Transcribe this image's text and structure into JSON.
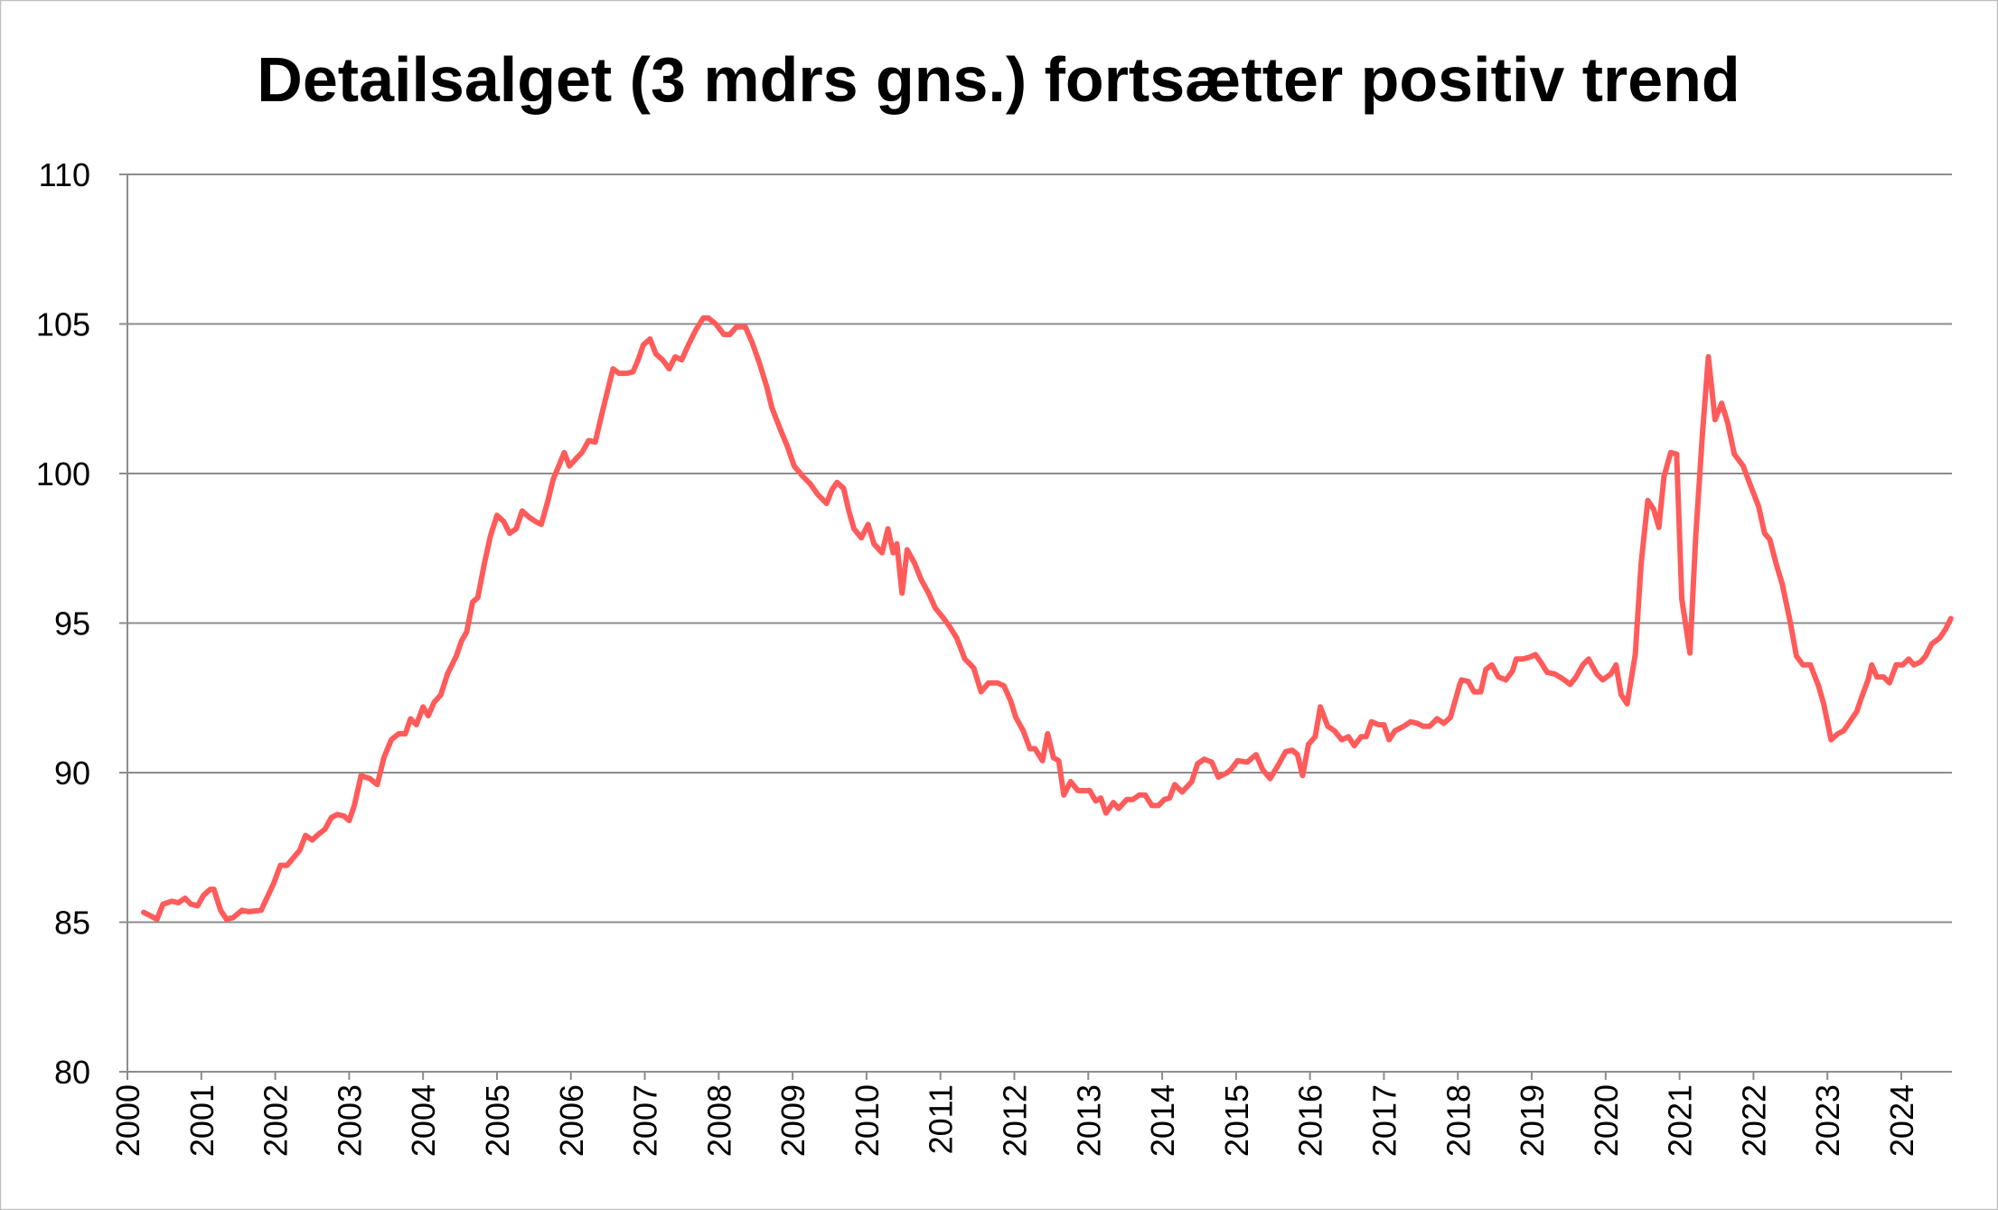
{
  "chart_data": {
    "type": "line",
    "title": "Detailsalget (3 mdrs gns.) fortsætter positiv trend",
    "xlabel": "",
    "ylabel": "",
    "ylim": [
      80,
      110
    ],
    "yticks": [
      80,
      85,
      90,
      95,
      100,
      105,
      110
    ],
    "xlim": [
      2000,
      2024.7
    ],
    "xticks": [
      "2000",
      "2001",
      "2002",
      "2003",
      "2004",
      "2005",
      "2006",
      "2007",
      "2008",
      "2009",
      "2010",
      "2011",
      "2012",
      "2013",
      "2014",
      "2015",
      "2016",
      "2017",
      "2018",
      "2019",
      "2020",
      "2021",
      "2022",
      "2023",
      "2024"
    ],
    "grid": "horizontal",
    "legend": "none",
    "line_color": "#FF5B5B",
    "series": [
      {
        "x": [
          2000.22,
          2000.4,
          2000.48,
          2000.6,
          2000.69,
          2000.78,
          2000.86,
          2000.95,
          2001.03,
          2001.12,
          2001.17,
          2001.26,
          2001.34,
          2001.43,
          2001.55,
          2001.64,
          2001.81,
          2001.98,
          2002.07,
          2002.16,
          2002.33,
          2002.41,
          2002.5,
          2002.59,
          2002.67,
          2002.76,
          2002.84,
          2002.93,
          2003.0,
          2003.07,
          2003.16,
          2003.28,
          2003.38,
          2003.47,
          2003.57,
          2003.67,
          2003.76,
          2003.83,
          2003.91,
          2004.0,
          2004.07,
          2004.15,
          2004.24,
          2004.33,
          2004.45,
          2004.52,
          2004.59,
          2004.67,
          2004.74,
          2004.83,
          2004.91,
          2005.0,
          2005.09,
          2005.17,
          2005.26,
          2005.34,
          2005.43,
          2005.52,
          2005.6,
          2005.69,
          2005.76,
          2005.86,
          2005.91,
          2005.98,
          2006.09,
          2006.15,
          2006.24,
          2006.33,
          2006.41,
          2006.5,
          2006.57,
          2006.65,
          2006.76,
          2006.84,
          2006.91,
          2006.98,
          2007.07,
          2007.15,
          2007.24,
          2007.33,
          2007.41,
          2007.5,
          2007.59,
          2007.69,
          2007.79,
          2007.86,
          2007.96,
          2008.07,
          2008.15,
          2008.24,
          2008.36,
          2008.45,
          2008.55,
          2008.65,
          2008.72,
          2008.83,
          2008.93,
          2009.02,
          2009.14,
          2009.24,
          2009.34,
          2009.46,
          2009.53,
          2009.6,
          2009.69,
          2009.76,
          2009.83,
          2009.93,
          2010.02,
          2010.1,
          2010.21,
          2010.29,
          2010.36,
          2010.41,
          2010.48,
          2010.55,
          2010.65,
          2010.74,
          2010.84,
          2010.93,
          2011.03,
          2011.12,
          2011.22,
          2011.33,
          2011.45,
          2011.55,
          2011.65,
          2011.77,
          2011.86,
          2011.95,
          2012.02,
          2012.12,
          2012.21,
          2012.28,
          2012.38,
          2012.45,
          2012.53,
          2012.6,
          2012.67,
          2012.76,
          2012.86,
          2013.02,
          2013.1,
          2013.17,
          2013.24,
          2013.34,
          2013.41,
          2013.52,
          2013.6,
          2013.69,
          2013.77,
          2013.86,
          2013.95,
          2014.03,
          2014.1,
          2014.17,
          2014.27,
          2014.4,
          2014.48,
          2014.57,
          2014.67,
          2014.76,
          2014.88,
          2014.93,
          2015.02,
          2015.15,
          2015.27,
          2015.36,
          2015.46,
          2015.57,
          2015.67,
          2015.76,
          2015.83,
          2015.9,
          2015.98,
          2016.07,
          2016.14,
          2016.24,
          2016.33,
          2016.43,
          2016.52,
          2016.6,
          2016.69,
          2016.76,
          2016.83,
          2016.93,
          2017.0,
          2017.07,
          2017.15,
          2017.27,
          2017.36,
          2017.45,
          2017.53,
          2017.62,
          2017.72,
          2017.81,
          2017.9,
          2018.02,
          2018.05,
          2018.14,
          2018.22,
          2018.31,
          2018.38,
          2018.46,
          2018.55,
          2018.65,
          2018.74,
          2018.79,
          2018.88,
          2018.96,
          2019.05,
          2019.12,
          2019.21,
          2019.31,
          2019.41,
          2019.52,
          2019.6,
          2019.69,
          2019.77,
          2019.88,
          2019.96,
          2020.07,
          2020.14,
          2020.21,
          2020.29,
          2020.4,
          2020.48,
          2020.57,
          2020.65,
          2020.72,
          2020.79,
          2020.88,
          2020.96,
          2021.03,
          2021.14,
          2021.22,
          2021.31,
          2021.39,
          2021.48,
          2021.57,
          2021.65,
          2021.74,
          2021.86,
          2021.96,
          2022.07,
          2022.15,
          2022.22,
          2022.31,
          2022.39,
          2022.5,
          2022.58,
          2022.67,
          2022.77,
          2022.88,
          2022.95,
          2023.05,
          2023.14,
          2023.22,
          2023.29,
          2023.4,
          2023.46,
          2023.55,
          2023.6,
          2023.67,
          2023.76,
          2023.84,
          2023.93,
          2024.02,
          2024.1,
          2024.17,
          2024.26,
          2024.33,
          2024.41,
          2024.52,
          2024.6,
          2024.67
        ],
        "y": [
          85.33,
          85.1,
          85.6,
          85.7,
          85.65,
          85.8,
          85.6,
          85.55,
          85.9,
          86.1,
          86.1,
          85.4,
          85.1,
          85.15,
          85.4,
          85.35,
          85.4,
          86.3,
          86.9,
          86.9,
          87.4,
          87.9,
          87.75,
          87.95,
          88.1,
          88.5,
          88.6,
          88.55,
          88.4,
          88.9,
          89.9,
          89.8,
          89.6,
          90.5,
          91.1,
          91.3,
          91.3,
          91.8,
          91.6,
          92.2,
          91.9,
          92.35,
          92.6,
          93.3,
          93.9,
          94.4,
          94.7,
          95.7,
          95.85,
          97.0,
          97.9,
          98.6,
          98.4,
          98.0,
          98.15,
          98.75,
          98.55,
          98.4,
          98.3,
          99.1,
          99.8,
          100.4,
          100.7,
          100.25,
          100.55,
          100.7,
          101.1,
          101.05,
          101.9,
          102.8,
          103.5,
          103.35,
          103.35,
          103.4,
          103.8,
          104.3,
          104.5,
          104.0,
          103.8,
          103.5,
          103.9,
          103.8,
          104.3,
          104.8,
          105.2,
          105.2,
          105.0,
          104.65,
          104.65,
          104.9,
          104.9,
          104.4,
          103.7,
          102.9,
          102.2,
          101.5,
          100.9,
          100.25,
          99.9,
          99.65,
          99.3,
          99.0,
          99.45,
          99.7,
          99.5,
          98.75,
          98.15,
          97.85,
          98.3,
          97.65,
          97.35,
          98.15,
          97.35,
          97.65,
          96.0,
          97.45,
          97.0,
          96.45,
          96.0,
          95.5,
          95.2,
          94.9,
          94.5,
          93.8,
          93.5,
          92.7,
          93.0,
          93.0,
          92.9,
          92.4,
          91.85,
          91.4,
          90.8,
          90.8,
          90.4,
          91.3,
          90.5,
          90.4,
          89.25,
          89.7,
          89.4,
          89.4,
          89.05,
          89.15,
          88.65,
          89.0,
          88.8,
          89.1,
          89.1,
          89.25,
          89.25,
          88.9,
          88.9,
          89.1,
          89.15,
          89.6,
          89.35,
          89.7,
          90.3,
          90.45,
          90.35,
          89.85,
          90.0,
          90.1,
          90.4,
          90.35,
          90.6,
          90.1,
          89.8,
          90.25,
          90.7,
          90.75,
          90.6,
          89.9,
          90.95,
          91.2,
          92.2,
          91.55,
          91.4,
          91.1,
          91.2,
          90.9,
          91.2,
          91.2,
          91.7,
          91.6,
          91.6,
          91.1,
          91.4,
          91.55,
          91.7,
          91.65,
          91.55,
          91.55,
          91.8,
          91.65,
          91.85,
          92.9,
          93.1,
          93.05,
          92.7,
          92.7,
          93.45,
          93.6,
          93.2,
          93.1,
          93.4,
          93.8,
          93.8,
          93.85,
          93.95,
          93.7,
          93.35,
          93.3,
          93.15,
          92.95,
          93.2,
          93.6,
          93.8,
          93.3,
          93.1,
          93.3,
          93.6,
          92.6,
          92.3,
          93.95,
          97.0,
          99.1,
          98.8,
          98.2,
          99.9,
          100.7,
          100.65,
          95.8,
          94.0,
          97.95,
          101.35,
          103.9,
          101.8,
          102.35,
          101.7,
          100.65,
          100.25,
          99.6,
          98.9,
          98.0,
          97.8,
          96.95,
          96.3,
          95.0,
          93.9,
          93.6,
          93.6,
          92.9,
          92.3,
          91.1,
          91.3,
          91.4,
          91.65,
          92.05,
          92.5,
          93.1,
          93.6,
          93.2,
          93.2,
          93.0,
          93.6,
          93.6,
          93.8,
          93.6,
          93.7,
          93.9,
          94.3,
          94.5,
          94.8,
          95.15
        ]
      }
    ]
  }
}
